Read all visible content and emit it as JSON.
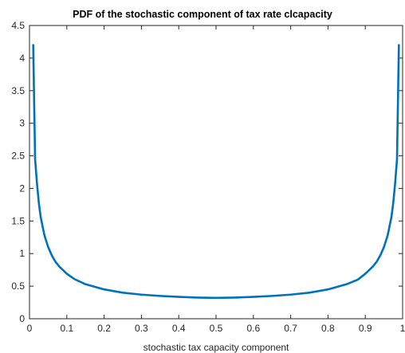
{
  "chart_data": {
    "type": "line",
    "title": "PDF of the stochastic component of tax rate clcapacity",
    "xlabel": "stochastic tax capacity component",
    "ylabel": "",
    "xlim": [
      0,
      1
    ],
    "ylim": [
      0,
      4.5
    ],
    "xticks": [
      0,
      0.1,
      0.2,
      0.3,
      0.4,
      0.5,
      0.6,
      0.7,
      0.8,
      0.9,
      1
    ],
    "xtick_labels": [
      "0",
      "0.1",
      "0.2",
      "0.3",
      "0.4",
      "0.5",
      "0.6",
      "0.7",
      "0.8",
      "0.9",
      "1"
    ],
    "yticks": [
      0,
      0.5,
      1,
      1.5,
      2,
      2.5,
      3,
      3.5,
      4,
      4.5
    ],
    "ytick_labels": [
      "0",
      "0.5",
      "1",
      "1.5",
      "2",
      "2.5",
      "3",
      "3.5",
      "4",
      "4.5"
    ],
    "grid": false,
    "series": [
      {
        "color": "#0072bd",
        "x": [
          0.01,
          0.015,
          0.02,
          0.025,
          0.03,
          0.04,
          0.05,
          0.06,
          0.07,
          0.08,
          0.1,
          0.12,
          0.15,
          0.2,
          0.25,
          0.3,
          0.35,
          0.4,
          0.45,
          0.5,
          0.55,
          0.6,
          0.65,
          0.7,
          0.75,
          0.8,
          0.85,
          0.88,
          0.9,
          0.92,
          0.93,
          0.94,
          0.95,
          0.96,
          0.97,
          0.975,
          0.98,
          0.985,
          0.99
        ],
        "y": [
          4.2,
          2.45,
          2.08,
          1.78,
          1.56,
          1.28,
          1.1,
          0.97,
          0.87,
          0.8,
          0.69,
          0.61,
          0.53,
          0.45,
          0.4,
          0.37,
          0.35,
          0.335,
          0.325,
          0.32,
          0.325,
          0.335,
          0.35,
          0.37,
          0.4,
          0.45,
          0.53,
          0.6,
          0.69,
          0.8,
          0.87,
          0.97,
          1.1,
          1.28,
          1.56,
          1.78,
          2.08,
          2.45,
          4.2
        ]
      }
    ]
  }
}
